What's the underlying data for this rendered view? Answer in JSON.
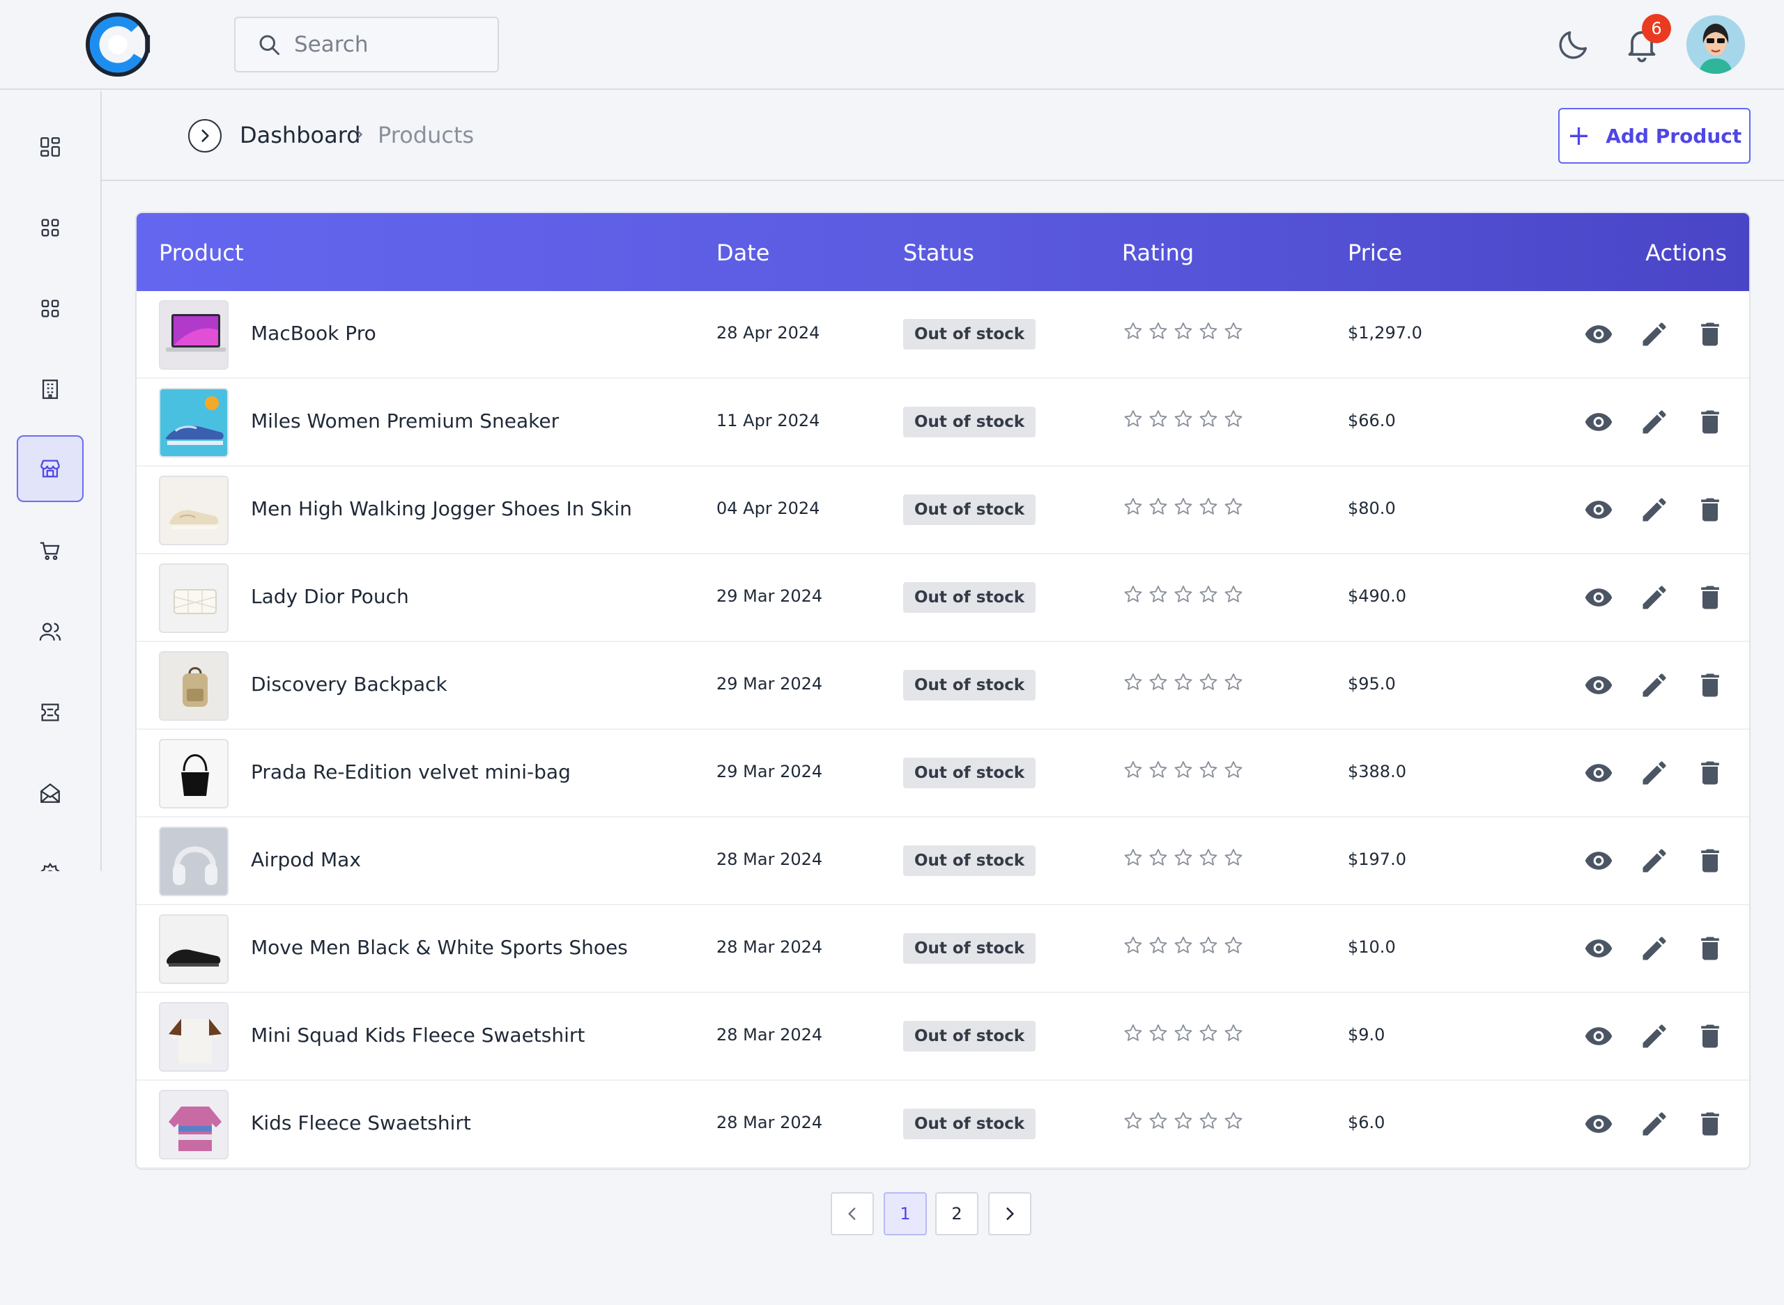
{
  "search": {
    "placeholder": "Search"
  },
  "notifications": {
    "count": "6"
  },
  "breadcrumb": {
    "home": "Dashboard",
    "current": "Products"
  },
  "actions": {
    "add_product": "Add Product"
  },
  "table": {
    "headers": {
      "product": "Product",
      "date": "Date",
      "status": "Status",
      "rating": "Rating",
      "price": "Price",
      "actions": "Actions"
    },
    "rows": [
      {
        "name": "MacBook Pro",
        "date": "28 Apr 2024",
        "status": "Out of stock",
        "price": "$1,297.0",
        "rating": 0,
        "thumb": "laptop"
      },
      {
        "name": "Miles Women Premium Sneaker",
        "date": "11 Apr 2024",
        "status": "Out of stock",
        "price": "$66.0",
        "rating": 0,
        "thumb": "sneaker-blue"
      },
      {
        "name": "Men High Walking Jogger Shoes In Skin",
        "date": "04 Apr 2024",
        "status": "Out of stock",
        "price": "$80.0",
        "rating": 0,
        "thumb": "shoe-beige"
      },
      {
        "name": "Lady Dior Pouch",
        "date": "29 Mar 2024",
        "status": "Out of stock",
        "price": "$490.0",
        "rating": 0,
        "thumb": "pouch"
      },
      {
        "name": "Discovery Backpack",
        "date": "29 Mar 2024",
        "status": "Out of stock",
        "price": "$95.0",
        "rating": 0,
        "thumb": "backpack"
      },
      {
        "name": "Prada Re-Edition velvet mini-bag",
        "date": "29 Mar 2024",
        "status": "Out of stock",
        "price": "$388.0",
        "rating": 0,
        "thumb": "black-bag"
      },
      {
        "name": "Airpod Max",
        "date": "28 Mar 2024",
        "status": "Out of stock",
        "price": "$197.0",
        "rating": 0,
        "thumb": "headphones"
      },
      {
        "name": "Move Men Black & White Sports Shoes",
        "date": "28 Mar 2024",
        "status": "Out of stock",
        "price": "$10.0",
        "rating": 0,
        "thumb": "shoe-black"
      },
      {
        "name": "Mini Squad Kids Fleece Swaetshirt",
        "date": "28 Mar 2024",
        "status": "Out of stock",
        "price": "$9.0",
        "rating": 0,
        "thumb": "sweatshirt-brown"
      },
      {
        "name": "Kids Fleece Swaetshirt",
        "date": "28 Mar 2024",
        "status": "Out of stock",
        "price": "$6.0",
        "rating": 0,
        "thumb": "sweatshirt-striped"
      }
    ]
  },
  "pagination": {
    "pages": [
      "1",
      "2"
    ],
    "current": "1"
  },
  "sidebar": {
    "items": [
      {
        "icon": "dashboard-icon"
      },
      {
        "icon": "grid-icon"
      },
      {
        "icon": "apps-icon"
      },
      {
        "icon": "building-icon"
      },
      {
        "icon": "store-icon",
        "active": true
      },
      {
        "icon": "cart-icon"
      },
      {
        "icon": "users-icon"
      },
      {
        "icon": "ticket-icon"
      },
      {
        "icon": "mail-icon"
      },
      {
        "icon": "settings-icon"
      }
    ]
  },
  "colors": {
    "accent": "#6366f1",
    "header_start": "#6466ef",
    "header_end": "#4a45c7",
    "badge": "#ea3a1f",
    "status_bg": "#e3e5e9",
    "icon": "#4b5563"
  }
}
